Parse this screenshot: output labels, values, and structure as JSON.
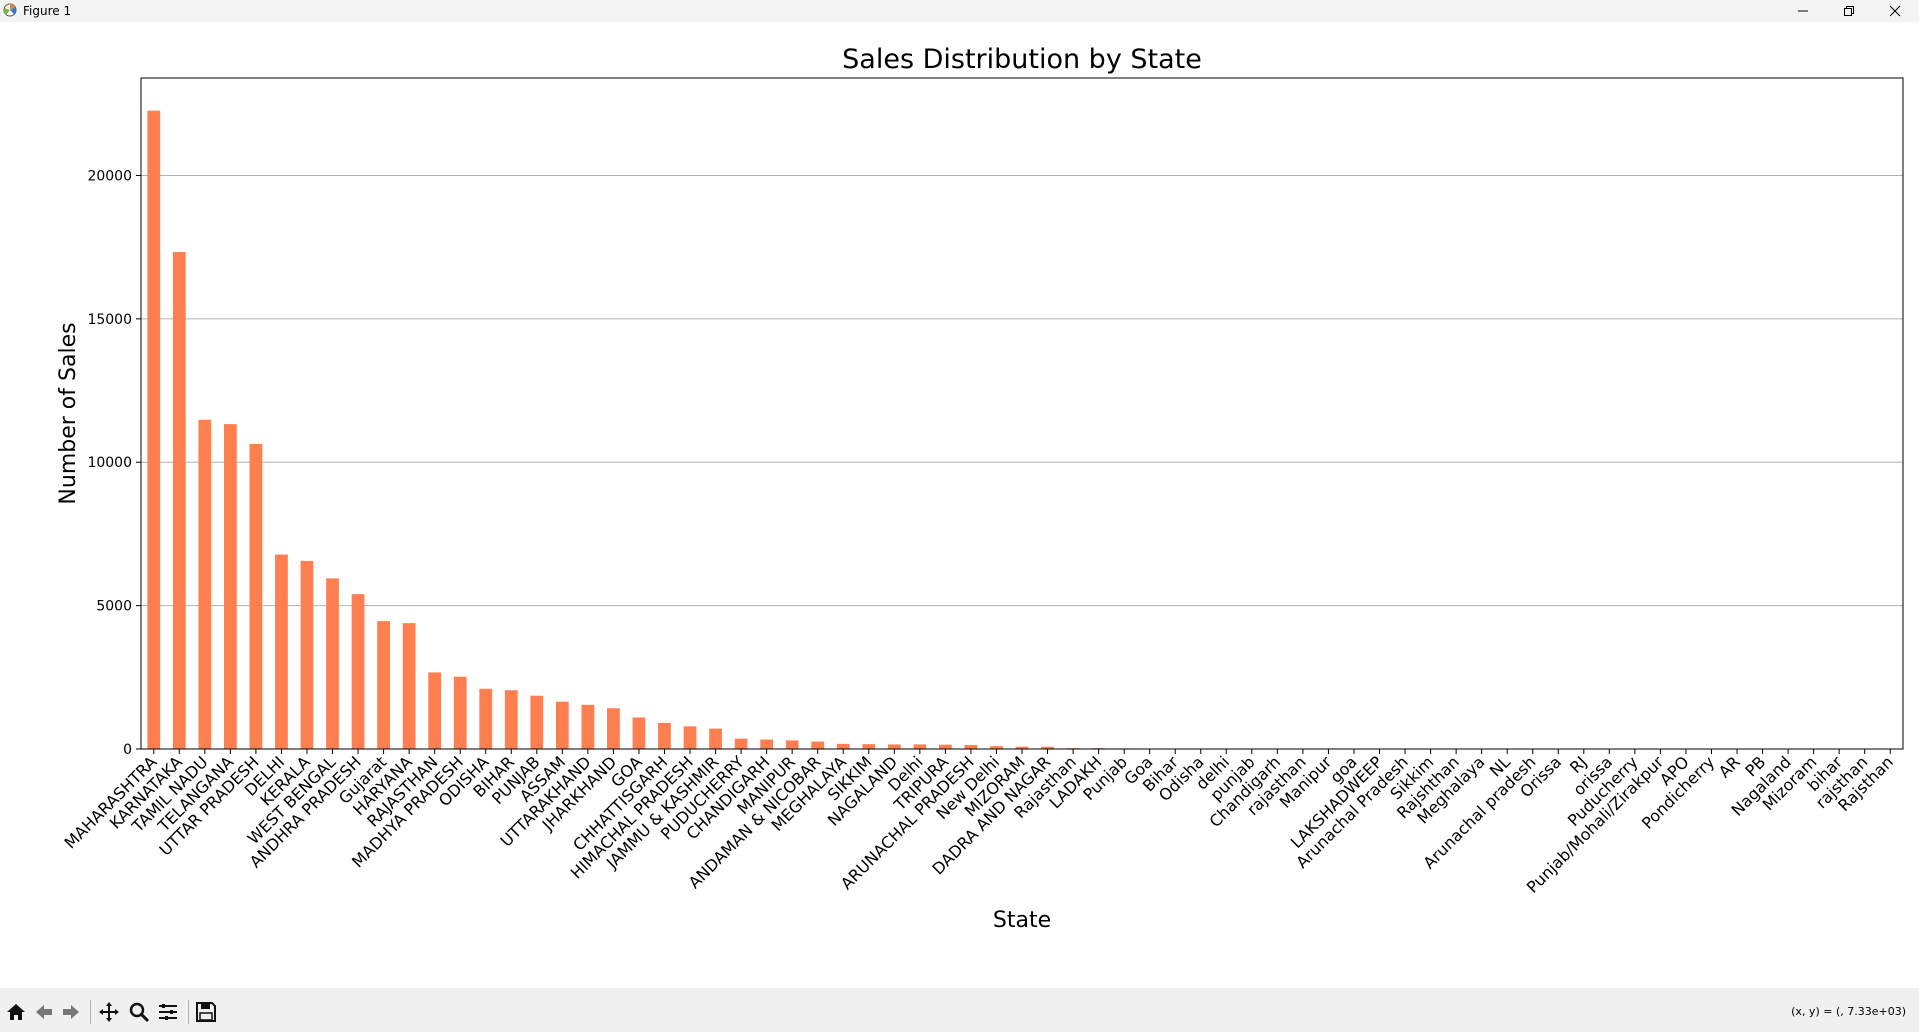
{
  "window": {
    "title": "Figure 1",
    "accent_bar_color": "#FF7F50"
  },
  "toolbar": {
    "tools": [
      "home-icon",
      "back-icon",
      "forward-icon",
      "pan-icon",
      "zoom-icon",
      "configure-subplots-icon",
      "save-icon"
    ],
    "coordinates": "(x, y) = (, 7.33e+03)"
  },
  "chart_data": {
    "type": "bar",
    "title": "Sales Distribution by State",
    "xlabel": "State",
    "ylabel": "Number of Sales",
    "ylim": [
      0,
      23400
    ],
    "yticks": [
      0,
      5000,
      10000,
      15000,
      20000
    ],
    "grid": "y-axis horizontal lines",
    "legend": "none",
    "color": "#FF7F50",
    "categories": [
      "MAHARASHTRA",
      "KARNATAKA",
      "TAMIL NADU",
      "TELANGANA",
      "UTTAR PRADESH",
      "DELHI",
      "KERALA",
      "WEST BENGAL",
      "ANDHRA PRADESH",
      "Gujarat",
      "HARYANA",
      "RAJASTHAN",
      "MADHYA PRADESH",
      "ODISHA",
      "BIHAR",
      "PUNJAB",
      "ASSAM",
      "UTTARAKHAND",
      "JHARKHAND",
      "GOA",
      "CHHATTISGARH",
      "HIMACHAL PRADESH",
      "JAMMU & KASHMIR",
      "PUDUCHERRY",
      "CHANDIGARH",
      "MANIPUR",
      "ANDAMAN & NICOBAR",
      "MEGHALAYA",
      "SIKKIM",
      "NAGALAND",
      "Delhi",
      "TRIPURA",
      "ARUNACHAL PRADESH",
      "New Delhi",
      "MIZORAM",
      "DADRA AND NAGAR",
      "Rajasthan",
      "LADAKH",
      "Punjab",
      "Goa",
      "Bihar",
      "Odisha",
      "delhi",
      "punjab",
      "Chandigarh",
      "rajasthan",
      "Manipur",
      "goa",
      "LAKSHADWEEP",
      "Arunachal Pradesh",
      "Sikkim",
      "Rajshthan",
      "Meghalaya",
      "NL",
      "Arunachal pradesh",
      "Orissa",
      "RJ",
      "orissa",
      "Puducherry",
      "Punjab/Mohali/Zirakpur",
      "APO",
      "Pondicherry",
      "AR",
      "PB",
      "Nagaland",
      "Mizoram",
      "bihar",
      "rajsthan",
      "Rajsthan"
    ],
    "values": [
      22260,
      17330,
      11480,
      11330,
      10640,
      6780,
      6560,
      5950,
      5400,
      4460,
      4390,
      2670,
      2520,
      2100,
      2050,
      1860,
      1650,
      1540,
      1420,
      1100,
      910,
      790,
      710,
      360,
      330,
      300,
      260,
      180,
      170,
      160,
      160,
      150,
      140,
      100,
      80,
      80,
      30,
      30,
      20,
      10,
      10,
      10,
      10,
      5,
      5,
      5,
      5,
      5,
      3,
      3,
      2,
      2,
      2,
      1,
      1,
      1,
      1,
      1,
      1,
      1,
      1,
      1,
      1,
      1,
      1,
      1,
      1,
      1,
      1
    ]
  }
}
